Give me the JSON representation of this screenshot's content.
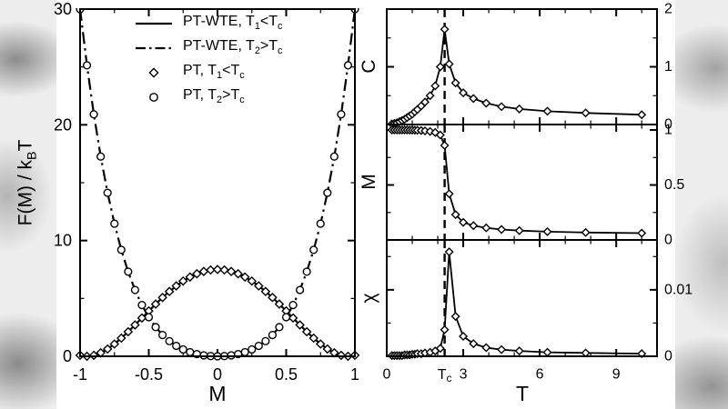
{
  "axes": {
    "left": {
      "ylabel_parts": [
        {
          "t": "F(M) / k"
        },
        {
          "t": "B",
          "s": 1
        },
        {
          "t": "T"
        }
      ]
    },
    "right": {
      "panel_labels": [
        "C",
        "M",
        "χ"
      ]
    }
  },
  "legend": {
    "items": [
      {
        "sample": "solid-line",
        "parts": [
          {
            "t": "PT-WTE, T"
          },
          {
            "t": "1",
            "s": 1
          },
          {
            "t": "<T"
          },
          {
            "t": "c",
            "s": 1
          }
        ]
      },
      {
        "sample": "dashdot-line",
        "parts": [
          {
            "t": "PT-WTE, T"
          },
          {
            "t": "2",
            "s": 1
          },
          {
            "t": ">T"
          },
          {
            "t": "c",
            "s": 1
          }
        ]
      },
      {
        "sample": "diamond-marker",
        "parts": [
          {
            "t": "PT, T"
          },
          {
            "t": "1",
            "s": 1
          },
          {
            "t": "<T"
          },
          {
            "t": "c",
            "s": 1
          }
        ]
      },
      {
        "sample": "circle-marker",
        "parts": [
          {
            "t": "PT, T"
          },
          {
            "t": "2",
            "s": 1
          },
          {
            "t": ">T"
          },
          {
            "t": "c",
            "s": 1
          }
        ]
      }
    ]
  },
  "chart_data": [
    {
      "id": "free_energy",
      "type": "line",
      "title": "",
      "xlabel": "M",
      "ylabel": "F(M) / k_B T",
      "xlim": [
        -1,
        1
      ],
      "ylim": [
        0,
        30
      ],
      "xticks": [
        -1,
        -0.5,
        0,
        0.5,
        1
      ],
      "yticks": [
        0,
        10,
        20,
        30
      ],
      "xtick_minor": 0.25,
      "ytick_minor": 5,
      "series": [
        {
          "name": "PT-WTE, T1<Tc",
          "slug": "ptwte-below-tc",
          "line": "solid",
          "marker": "none",
          "x": [
            -1,
            -0.95,
            -0.9,
            -0.85,
            -0.8,
            -0.75,
            -0.7,
            -0.65,
            -0.6,
            -0.55,
            -0.5,
            -0.45,
            -0.4,
            -0.35,
            -0.3,
            -0.25,
            -0.2,
            -0.15,
            -0.1,
            -0.05,
            0,
            0.05,
            0.1,
            0.15,
            0.2,
            0.25,
            0.3,
            0.35,
            0.4,
            0.45,
            0.5,
            0.55,
            0.6,
            0.65,
            0.7,
            0.75,
            0.8,
            0.85,
            0.9,
            0.95,
            1
          ],
          "y": [
            0.09,
            0,
            0.08,
            0.3,
            0.63,
            1.06,
            1.57,
            2.12,
            2.71,
            3.31,
            3.92,
            4.51,
            5.08,
            5.6,
            6.08,
            6.5,
            6.85,
            7.13,
            7.33,
            7.46,
            7.5,
            7.46,
            7.33,
            7.13,
            6.85,
            6.5,
            6.08,
            5.6,
            5.08,
            4.51,
            3.92,
            3.31,
            2.71,
            2.12,
            1.57,
            1.06,
            0.63,
            0.3,
            0.08,
            0,
            0.09
          ]
        },
        {
          "name": "PT-WTE, T2>Tc",
          "slug": "ptwte-above-tc",
          "line": "dashdot",
          "marker": "none",
          "x": [
            -1,
            -0.95,
            -0.9,
            -0.85,
            -0.8,
            -0.75,
            -0.7,
            -0.65,
            -0.6,
            -0.55,
            -0.5,
            -0.45,
            -0.4,
            -0.35,
            -0.3,
            -0.25,
            -0.2,
            -0.15,
            -0.1,
            -0.05,
            0,
            0.05,
            0.1,
            0.15,
            0.2,
            0.25,
            0.3,
            0.35,
            0.4,
            0.45,
            0.5,
            0.55,
            0.6,
            0.65,
            0.7,
            0.75,
            0.8,
            0.85,
            0.9,
            0.95,
            1
          ],
          "y": [
            30,
            25.14,
            20.91,
            17.26,
            14.13,
            11.46,
            9.2,
            7.31,
            5.73,
            4.43,
            3.38,
            2.52,
            1.84,
            1.31,
            0.9,
            0.59,
            0.36,
            0.19,
            0.08,
            0.02,
            0,
            0.02,
            0.08,
            0.19,
            0.36,
            0.59,
            0.9,
            1.31,
            1.84,
            2.52,
            3.38,
            4.43,
            5.73,
            7.31,
            9.2,
            11.46,
            14.13,
            17.26,
            20.91,
            25.14,
            30
          ]
        },
        {
          "name": "PT, T1<Tc",
          "slug": "pt-below-tc",
          "line": "none",
          "marker": "diamond",
          "x": [
            -1,
            -0.95,
            -0.9,
            -0.85,
            -0.8,
            -0.75,
            -0.7,
            -0.65,
            -0.6,
            -0.55,
            -0.5,
            -0.45,
            -0.4,
            -0.35,
            -0.3,
            -0.25,
            -0.2,
            -0.15,
            -0.1,
            -0.05,
            0,
            0.05,
            0.1,
            0.15,
            0.2,
            0.25,
            0.3,
            0.35,
            0.4,
            0.45,
            0.5,
            0.55,
            0.6,
            0.65,
            0.7,
            0.75,
            0.8,
            0.85,
            0.9,
            0.95,
            1
          ],
          "y": [
            0.09,
            0,
            0.08,
            0.3,
            0.63,
            1.06,
            1.57,
            2.12,
            2.71,
            3.31,
            3.92,
            4.51,
            5.08,
            5.6,
            6.08,
            6.5,
            6.85,
            7.13,
            7.33,
            7.46,
            7.5,
            7.46,
            7.33,
            7.13,
            6.85,
            6.5,
            6.08,
            5.6,
            5.08,
            4.51,
            3.92,
            3.31,
            2.71,
            2.12,
            1.57,
            1.06,
            0.63,
            0.3,
            0.08,
            0,
            0.09
          ]
        },
        {
          "name": "PT, T2>Tc",
          "slug": "pt-above-tc",
          "line": "none",
          "marker": "circle",
          "x": [
            -1,
            -0.95,
            -0.9,
            -0.85,
            -0.8,
            -0.75,
            -0.7,
            -0.65,
            -0.6,
            -0.55,
            -0.5,
            -0.45,
            -0.4,
            -0.35,
            -0.3,
            -0.25,
            -0.2,
            -0.15,
            -0.1,
            -0.05,
            0,
            0.05,
            0.1,
            0.15,
            0.2,
            0.25,
            0.3,
            0.35,
            0.4,
            0.45,
            0.5,
            0.55,
            0.6,
            0.65,
            0.7,
            0.75,
            0.8,
            0.85,
            0.9,
            0.95,
            1
          ],
          "y": [
            30,
            25.14,
            20.91,
            17.26,
            14.13,
            11.46,
            9.2,
            7.31,
            5.73,
            4.43,
            3.38,
            2.52,
            1.84,
            1.31,
            0.9,
            0.59,
            0.36,
            0.19,
            0.08,
            0.02,
            0,
            0.02,
            0.08,
            0.19,
            0.36,
            0.59,
            0.9,
            1.31,
            1.84,
            2.52,
            3.38,
            4.43,
            5.73,
            7.31,
            9.2,
            11.46,
            14.13,
            17.26,
            20.91,
            25.14,
            30
          ]
        }
      ]
    },
    {
      "id": "specific_heat",
      "type": "line",
      "title": "",
      "xlabel": "T",
      "ylabel": "C",
      "xlim": [
        0,
        10.6
      ],
      "ylim": [
        0,
        2
      ],
      "xticks": [
        0,
        3,
        6,
        9
      ],
      "yticks": [
        0,
        1,
        2
      ],
      "xtick_minor": 1,
      "ytick_minor": 0.5,
      "vline": 2.27,
      "series": [
        {
          "name": "C(T)",
          "slug": "specific-heat",
          "line": "solid",
          "marker": "diamond",
          "x": [
            0.2,
            0.3,
            0.4,
            0.5,
            0.6,
            0.7,
            0.8,
            0.9,
            1.0,
            1.1,
            1.2,
            1.35,
            1.5,
            1.7,
            1.9,
            2.1,
            2.27,
            2.45,
            2.7,
            3.0,
            3.4,
            3.9,
            4.5,
            5.2,
            6.3,
            7.8,
            10.0
          ],
          "y": [
            0.01,
            0.02,
            0.03,
            0.05,
            0.07,
            0.09,
            0.12,
            0.15,
            0.18,
            0.22,
            0.26,
            0.32,
            0.39,
            0.5,
            0.67,
            1.0,
            1.65,
            1.05,
            0.72,
            0.55,
            0.45,
            0.37,
            0.31,
            0.27,
            0.23,
            0.2,
            0.17
          ]
        }
      ]
    },
    {
      "id": "magnetization",
      "type": "line",
      "title": "",
      "xlabel": "T",
      "ylabel": "M",
      "xlim": [
        0,
        10.6
      ],
      "ylim": [
        0,
        1.05
      ],
      "xticks": [
        0,
        3,
        6,
        9
      ],
      "yticks": [
        0,
        0.5,
        1
      ],
      "xtick_minor": 1,
      "ytick_minor": 0.25,
      "vline": 2.27,
      "series": [
        {
          "name": "M(T)",
          "slug": "magnetization",
          "line": "solid",
          "marker": "diamond",
          "x": [
            0.2,
            0.3,
            0.4,
            0.5,
            0.6,
            0.7,
            0.8,
            0.9,
            1.0,
            1.1,
            1.2,
            1.35,
            1.5,
            1.7,
            1.9,
            2.1,
            2.27,
            2.45,
            2.7,
            3.0,
            3.4,
            3.9,
            4.5,
            5.2,
            6.3,
            7.8,
            10.0
          ],
          "y": [
            1,
            1,
            1,
            1,
            1,
            1,
            1,
            0.999,
            0.999,
            0.998,
            0.997,
            0.995,
            0.992,
            0.987,
            0.978,
            0.955,
            0.86,
            0.42,
            0.23,
            0.16,
            0.13,
            0.11,
            0.095,
            0.085,
            0.075,
            0.068,
            0.062
          ]
        }
      ]
    },
    {
      "id": "susceptibility",
      "type": "line",
      "title": "",
      "xlabel": "T",
      "ylabel": "χ",
      "xlim": [
        0,
        10.6
      ],
      "ylim": [
        0,
        0.0175
      ],
      "xticks": [
        0,
        3,
        6,
        9
      ],
      "yticks": [
        0,
        0.01
      ],
      "xtick_minor": 1,
      "ytick_minor": 0.005,
      "vline": 2.27,
      "special_xticks": [
        {
          "x": 2.27,
          "parts": [
            {
              "t": "T"
            },
            {
              "t": "c",
              "s": 1
            }
          ]
        }
      ],
      "series": [
        {
          "name": "χ(T)",
          "slug": "susceptibility",
          "line": "solid",
          "marker": "diamond",
          "x": [
            0.2,
            0.3,
            0.4,
            0.5,
            0.6,
            0.7,
            0.8,
            0.9,
            1.0,
            1.1,
            1.2,
            1.35,
            1.5,
            1.7,
            1.9,
            2.1,
            2.27,
            2.45,
            2.7,
            3.0,
            3.4,
            3.9,
            4.5,
            5.2,
            6.3,
            7.8,
            10.0
          ],
          "y": [
            0.0001,
            0.0001,
            0.0001,
            0.0001,
            0.0001,
            0.0002,
            0.0002,
            0.0002,
            0.0003,
            0.0003,
            0.0004,
            0.0004,
            0.0005,
            0.0006,
            0.0008,
            0.0012,
            0.004,
            0.0157,
            0.006,
            0.003,
            0.0019,
            0.0013,
            0.001,
            0.0008,
            0.0006,
            0.0005,
            0.0004
          ]
        }
      ]
    }
  ]
}
